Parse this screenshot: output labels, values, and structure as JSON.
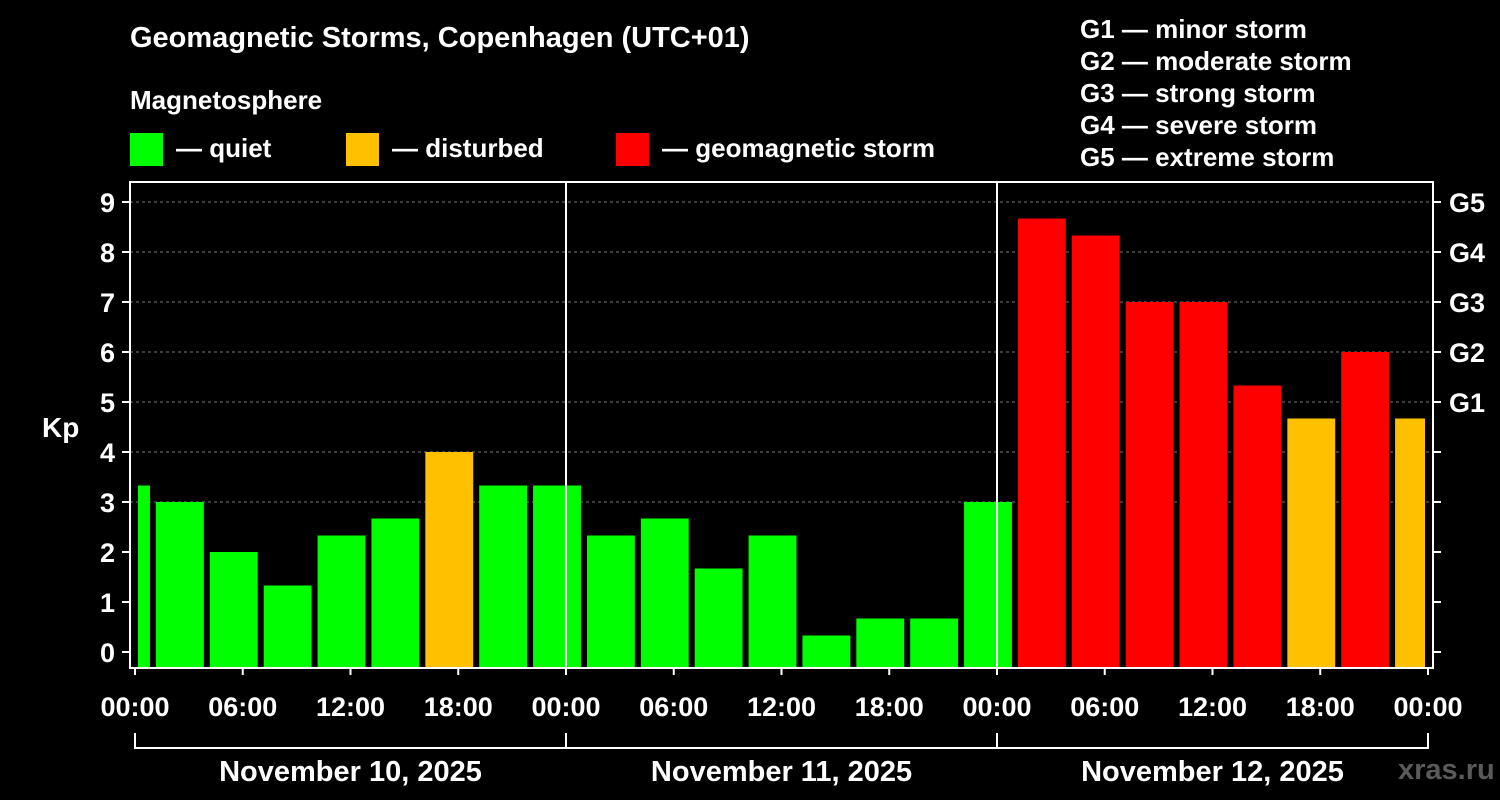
{
  "title": "Geomagnetic Storms, Copenhagen (UTC+01)",
  "subtitle": "Magnetosphere",
  "legend": [
    {
      "label": "— quiet",
      "color": "#00ff00"
    },
    {
      "label": "— disturbed",
      "color": "#ffc000"
    },
    {
      "label": "— geomagnetic storm",
      "color": "#ff0000"
    }
  ],
  "storm_levels": [
    "G1 — minor storm",
    "G2 — moderate storm",
    "G3 — strong storm",
    "G4 — severe storm",
    "G5 — extreme storm"
  ],
  "watermark": "xras.ru",
  "chart_data": {
    "type": "bar",
    "title": "Geomagnetic Storms, Copenhagen (UTC+01)",
    "ylabel": "Kp",
    "ylim": [
      0,
      9
    ],
    "yticks": [
      "0",
      "1",
      "2",
      "3",
      "4",
      "5",
      "6",
      "7",
      "8",
      "9"
    ],
    "right_ticks": [
      {
        "kp": 5,
        "label": "G1"
      },
      {
        "kp": 6,
        "label": "G2"
      },
      {
        "kp": 7,
        "label": "G3"
      },
      {
        "kp": 8,
        "label": "G4"
      },
      {
        "kp": 9,
        "label": "G5"
      }
    ],
    "x_hour_range": [
      0,
      72
    ],
    "xticks": [
      {
        "hour": 0,
        "label": "00:00"
      },
      {
        "hour": 6,
        "label": "06:00"
      },
      {
        "hour": 12,
        "label": "12:00"
      },
      {
        "hour": 18,
        "label": "18:00"
      },
      {
        "hour": 24,
        "label": "00:00"
      },
      {
        "hour": 30,
        "label": "06:00"
      },
      {
        "hour": 36,
        "label": "12:00"
      },
      {
        "hour": 42,
        "label": "18:00"
      },
      {
        "hour": 48,
        "label": "00:00"
      },
      {
        "hour": 54,
        "label": "06:00"
      },
      {
        "hour": 60,
        "label": "12:00"
      },
      {
        "hour": 66,
        "label": "18:00"
      },
      {
        "hour": 72,
        "label": "00:00"
      }
    ],
    "dates": [
      {
        "label": "November 10, 2025",
        "start": 0,
        "end": 24
      },
      {
        "label": "November 11, 2025",
        "start": 24,
        "end": 48
      },
      {
        "label": "November 12, 2025",
        "start": 48,
        "end": 72
      }
    ],
    "day_separators": [
      24,
      48
    ],
    "bars": [
      {
        "start": 0,
        "end": 1,
        "kp": 3.33,
        "status": "quiet"
      },
      {
        "start": 1,
        "end": 4,
        "kp": 3.0,
        "status": "quiet"
      },
      {
        "start": 4,
        "end": 7,
        "kp": 2.0,
        "status": "quiet"
      },
      {
        "start": 7,
        "end": 10,
        "kp": 1.33,
        "status": "quiet"
      },
      {
        "start": 10,
        "end": 13,
        "kp": 2.33,
        "status": "quiet"
      },
      {
        "start": 13,
        "end": 16,
        "kp": 2.67,
        "status": "quiet"
      },
      {
        "start": 16,
        "end": 19,
        "kp": 4.0,
        "status": "disturbed"
      },
      {
        "start": 19,
        "end": 22,
        "kp": 3.33,
        "status": "quiet"
      },
      {
        "start": 22,
        "end": 25,
        "kp": 3.33,
        "status": "quiet"
      },
      {
        "start": 25,
        "end": 28,
        "kp": 2.33,
        "status": "quiet"
      },
      {
        "start": 28,
        "end": 31,
        "kp": 2.67,
        "status": "quiet"
      },
      {
        "start": 31,
        "end": 34,
        "kp": 1.67,
        "status": "quiet"
      },
      {
        "start": 34,
        "end": 37,
        "kp": 2.33,
        "status": "quiet"
      },
      {
        "start": 37,
        "end": 40,
        "kp": 0.33,
        "status": "quiet"
      },
      {
        "start": 40,
        "end": 43,
        "kp": 0.67,
        "status": "quiet"
      },
      {
        "start": 43,
        "end": 46,
        "kp": 0.67,
        "status": "quiet"
      },
      {
        "start": 46,
        "end": 49,
        "kp": 3.0,
        "status": "quiet"
      },
      {
        "start": 49,
        "end": 52,
        "kp": 8.67,
        "status": "storm"
      },
      {
        "start": 52,
        "end": 55,
        "kp": 8.33,
        "status": "storm"
      },
      {
        "start": 55,
        "end": 58,
        "kp": 7.0,
        "status": "storm"
      },
      {
        "start": 58,
        "end": 61,
        "kp": 7.0,
        "status": "storm"
      },
      {
        "start": 61,
        "end": 64,
        "kp": 5.33,
        "status": "storm"
      },
      {
        "start": 64,
        "end": 67,
        "kp": 4.67,
        "status": "disturbed"
      },
      {
        "start": 67,
        "end": 70,
        "kp": 6.0,
        "status": "storm"
      },
      {
        "start": 70,
        "end": 72,
        "kp": 4.67,
        "status": "disturbed"
      }
    ],
    "status_colors": {
      "quiet": "#00ff00",
      "disturbed": "#ffc000",
      "storm": "#ff0000"
    }
  }
}
